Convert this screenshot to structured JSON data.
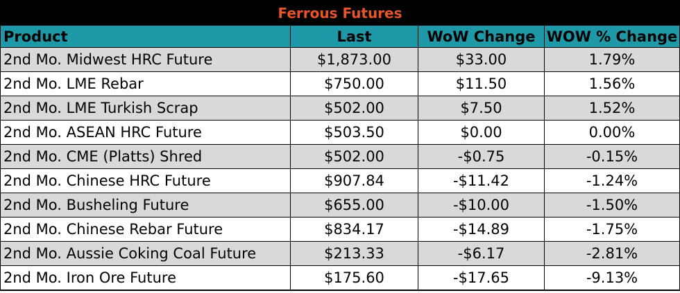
{
  "title": "Ferrous Futures",
  "headers": [
    "Product",
    "Last",
    "WoW Change",
    "WOW % Change"
  ],
  "colors": {
    "title_bg": "#000000",
    "title_text": "#e8552a",
    "header_bg": "#1f98a8",
    "row_shade": "#d9d9d9"
  },
  "rows": [
    [
      "2nd Mo. Midwest HRC Future",
      "$1,873.00",
      "$33.00",
      "1.79%"
    ],
    [
      "2nd Mo. LME Rebar",
      "$750.00",
      "$11.50",
      "1.56%"
    ],
    [
      "2nd Mo. LME Turkish Scrap",
      "$502.00",
      "$7.50",
      "1.52%"
    ],
    [
      "2nd Mo. ASEAN HRC Future",
      "$503.50",
      "$0.00",
      "0.00%"
    ],
    [
      "2nd Mo. CME (Platts) Shred",
      "$502.00",
      "-$0.75",
      "-0.15%"
    ],
    [
      "2nd Mo. Chinese HRC Future",
      "$907.84",
      "-$11.42",
      "-1.24%"
    ],
    [
      "2nd Mo. Busheling Future",
      "$655.00",
      "-$10.00",
      "-1.50%"
    ],
    [
      "2nd Mo. Chinese Rebar Future",
      "$834.17",
      "-$14.89",
      "-1.75%"
    ],
    [
      "2nd Mo. Aussie Coking Coal Future",
      "$213.33",
      "-$6.17",
      "-2.81%"
    ],
    [
      "2nd Mo. Iron Ore Future",
      "$175.60",
      "-$17.65",
      "-9.13%"
    ]
  ],
  "chart_data": {
    "type": "table",
    "title": "Ferrous Futures",
    "columns": [
      "Product",
      "Last",
      "WoW Change",
      "WOW % Change"
    ],
    "rows": [
      {
        "product": "2nd Mo. Midwest HRC Future",
        "last": 1873.0,
        "wow_change": 33.0,
        "wow_pct": 1.79
      },
      {
        "product": "2nd Mo. LME Rebar",
        "last": 750.0,
        "wow_change": 11.5,
        "wow_pct": 1.56
      },
      {
        "product": "2nd Mo. LME Turkish Scrap",
        "last": 502.0,
        "wow_change": 7.5,
        "wow_pct": 1.52
      },
      {
        "product": "2nd Mo. ASEAN HRC Future",
        "last": 503.5,
        "wow_change": 0.0,
        "wow_pct": 0.0
      },
      {
        "product": "2nd Mo. CME (Platts) Shred",
        "last": 502.0,
        "wow_change": -0.75,
        "wow_pct": -0.15
      },
      {
        "product": "2nd Mo. Chinese HRC Future",
        "last": 907.84,
        "wow_change": -11.42,
        "wow_pct": -1.24
      },
      {
        "product": "2nd Mo. Busheling Future",
        "last": 655.0,
        "wow_change": -10.0,
        "wow_pct": -1.5
      },
      {
        "product": "2nd Mo. Chinese Rebar Future",
        "last": 834.17,
        "wow_change": -14.89,
        "wow_pct": -1.75
      },
      {
        "product": "2nd Mo. Aussie Coking Coal Future",
        "last": 213.33,
        "wow_change": -6.17,
        "wow_pct": -2.81
      },
      {
        "product": "2nd Mo. Iron Ore Future",
        "last": 175.6,
        "wow_change": -17.65,
        "wow_pct": -9.13
      }
    ]
  }
}
